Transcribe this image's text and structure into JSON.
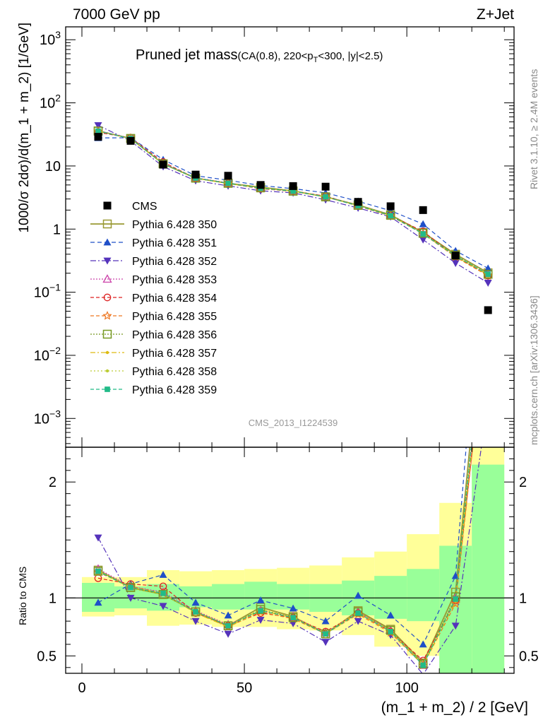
{
  "header": {
    "energy_label": "7000 GeV pp",
    "process_label": "Z+Jet"
  },
  "side_labels": {
    "rivet": "Rivet 3.1.10, ≥ 2.4M events",
    "mcplots": "mcplots.cern.ch [arXiv:1306.3436]"
  },
  "colors": {
    "band_outer": "#ffff99",
    "band_inner": "#99ff99",
    "cms": "#000000"
  },
  "chart_data": {
    "type": "scatter",
    "title_main": "Pruned jet mass",
    "title_sub": "(CA(0.8), 220<p",
    "title_sub_index": "T",
    "title_sub_tail": "<300, |y|<2.5)",
    "analysis_id": "CMS_2013_I1224539",
    "xlabel": "(m_1 + m_2) / 2 [GeV]",
    "ylabel": "1000/σ 2dσ)/d(m_1 + m_2) [1/GeV]",
    "ratio_ylabel": "Ratio to CMS",
    "xlim": [
      -5,
      133
    ],
    "ylim": [
      0.00035,
      1600
    ],
    "y_log": true,
    "ratio_ylim": [
      0.35,
      2.3
    ],
    "x_ticks": [
      0,
      50,
      100
    ],
    "x_tick_labels": [
      "0",
      "50",
      "100"
    ],
    "y_ticks": [
      {
        "base": "10",
        "exp": "3"
      },
      {
        "base": "10",
        "exp": "2"
      },
      {
        "base": "10",
        "exp": ""
      },
      {
        "base": "1",
        "exp": ""
      },
      {
        "base": "10",
        "exp": "−1"
      },
      {
        "base": "10",
        "exp": "−2"
      },
      {
        "base": "10",
        "exp": "−3"
      }
    ],
    "y_tick_values": [
      1000,
      100,
      10,
      1,
      0.1,
      0.01,
      0.001
    ],
    "ratio_ticks": [
      "2",
      "1",
      "0.5"
    ],
    "ratio_tick_values": [
      2,
      1,
      0.5
    ],
    "bins": [
      {
        "lo": 0,
        "hi": 10
      },
      {
        "lo": 10,
        "hi": 20
      },
      {
        "lo": 20,
        "hi": 30
      },
      {
        "lo": 30,
        "hi": 40
      },
      {
        "lo": 40,
        "hi": 50
      },
      {
        "lo": 50,
        "hi": 60
      },
      {
        "lo": 60,
        "hi": 70
      },
      {
        "lo": 70,
        "hi": 80
      },
      {
        "lo": 80,
        "hi": 90
      },
      {
        "lo": 90,
        "hi": 100
      },
      {
        "lo": 100,
        "hi": 110
      },
      {
        "lo": 110,
        "hi": 120
      },
      {
        "lo": 120,
        "hi": 130
      }
    ],
    "x": [
      5,
      15,
      25,
      35,
      45,
      55,
      65,
      75,
      85,
      95,
      105,
      115,
      125
    ],
    "cms": {
      "name": "CMS",
      "values": [
        29,
        25,
        10.5,
        7.3,
        7.0,
        5.0,
        4.8,
        4.7,
        2.7,
        2.3,
        2.0,
        0.38,
        0.052
      ]
    },
    "band_inner": [
      [
        0.88,
        1.13
      ],
      [
        0.91,
        1.1
      ],
      [
        0.89,
        1.12
      ],
      [
        0.92,
        1.1
      ],
      [
        0.9,
        1.12
      ],
      [
        0.9,
        1.14
      ],
      [
        0.9,
        1.12
      ],
      [
        0.88,
        1.12
      ],
      [
        0.85,
        1.15
      ],
      [
        0.82,
        1.19
      ],
      [
        0.8,
        1.25
      ],
      [
        0.35,
        1.45
      ],
      [
        0.35,
        2.15
      ]
    ],
    "band_outer": [
      [
        0.84,
        1.18
      ],
      [
        0.85,
        1.18
      ],
      [
        0.76,
        1.24
      ],
      [
        0.77,
        1.23
      ],
      [
        0.75,
        1.24
      ],
      [
        0.75,
        1.25
      ],
      [
        0.73,
        1.26
      ],
      [
        0.72,
        1.28
      ],
      [
        0.68,
        1.35
      ],
      [
        0.58,
        1.4
      ],
      [
        0.5,
        1.55
      ],
      [
        0.35,
        1.82
      ],
      [
        0.35,
        2.3
      ]
    ],
    "series": [
      {
        "name": "Pythia 6.428 350",
        "color": "#999933",
        "marker": "square-open",
        "dash": "",
        "values": [
          1.24,
          1.09,
          1.03,
          0.88,
          0.76,
          0.92,
          0.84,
          0.69,
          0.89,
          0.73,
          0.44,
          1.05,
          3.9
        ]
      },
      {
        "name": "Pythia 6.428 351",
        "color": "#1f4fc8",
        "marker": "triangle-up",
        "dash": "6,4",
        "values": [
          0.96,
          1.12,
          1.2,
          0.96,
          0.85,
          0.98,
          0.91,
          0.8,
          1.02,
          0.85,
          0.6,
          1.19,
          4.6
        ]
      },
      {
        "name": "Pythia 6.428 352",
        "color": "#5533bb",
        "marker": "triangle-down",
        "dash": "8,3,2,3",
        "values": [
          1.52,
          1.0,
          0.93,
          0.8,
          0.69,
          0.81,
          0.78,
          0.62,
          0.8,
          0.68,
          0.34,
          0.76,
          2.7
        ]
      },
      {
        "name": "Pythia 6.428 353",
        "color": "#cc44aa",
        "marker": "triangle-open",
        "dash": "2,2",
        "values": [
          1.25,
          1.1,
          1.05,
          0.89,
          0.77,
          0.89,
          0.84,
          0.7,
          0.88,
          0.72,
          0.42,
          1.0,
          3.6
        ]
      },
      {
        "name": "Pythia 6.428 354",
        "color": "#dd2222",
        "marker": "circle-open",
        "dash": "5,3",
        "values": [
          1.17,
          1.12,
          1.1,
          0.87,
          0.76,
          0.87,
          0.83,
          0.71,
          0.87,
          0.71,
          0.46,
          0.98,
          3.5
        ]
      },
      {
        "name": "Pythia 6.428 355",
        "color": "#ee7722",
        "marker": "star",
        "dash": "5,3",
        "values": [
          1.22,
          1.1,
          1.04,
          0.88,
          0.75,
          0.88,
          0.82,
          0.69,
          0.86,
          0.7,
          0.42,
          0.95,
          3.5
        ]
      },
      {
        "name": "Pythia 6.428 356",
        "color": "#779922",
        "marker": "square-open",
        "dash": "2,2",
        "values": [
          1.23,
          1.09,
          1.03,
          0.88,
          0.76,
          0.9,
          0.83,
          0.69,
          0.88,
          0.72,
          0.43,
          1.01,
          3.7
        ]
      },
      {
        "name": "Pythia 6.428 357",
        "color": "#ddbb11",
        "marker": "dot",
        "dash": "7,3,2,3",
        "values": [
          1.23,
          1.09,
          1.04,
          0.87,
          0.75,
          0.89,
          0.83,
          0.69,
          0.87,
          0.71,
          0.42,
          0.97,
          3.6
        ]
      },
      {
        "name": "Pythia 6.428 358",
        "color": "#bbcc33",
        "marker": "dot",
        "dash": "2,3",
        "values": [
          1.24,
          1.08,
          1.03,
          0.88,
          0.76,
          0.9,
          0.84,
          0.7,
          0.88,
          0.72,
          0.43,
          1.0,
          3.7
        ]
      },
      {
        "name": "Pythia 6.428 359",
        "color": "#22bb88",
        "marker": "square",
        "dash": "5,3",
        "values": [
          1.23,
          1.09,
          1.04,
          0.88,
          0.76,
          0.89,
          0.83,
          0.69,
          0.87,
          0.71,
          0.42,
          0.99,
          3.7
        ]
      }
    ]
  }
}
